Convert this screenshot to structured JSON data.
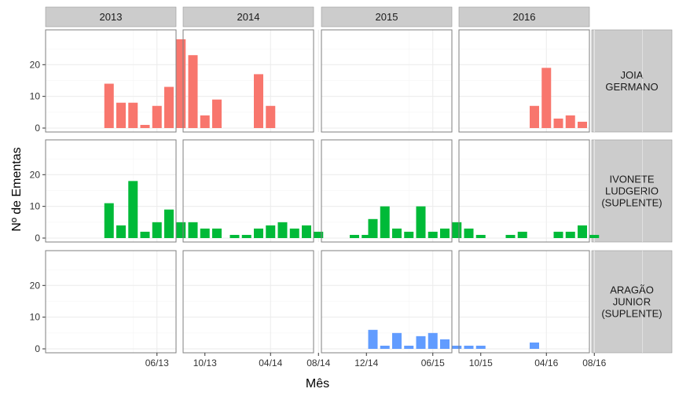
{
  "chart_data": {
    "type": "bar",
    "facet_columns": [
      "2013",
      "2014",
      "2015",
      "2016"
    ],
    "facet_rows": [
      {
        "label_lines": [
          "JOIA",
          "GERMANO"
        ],
        "color": "#F8766D"
      },
      {
        "label_lines": [
          "IVONETE",
          "LUDGERIO",
          "(SUPLENTE)"
        ],
        "color": "#00BA38"
      },
      {
        "label_lines": [
          "ARAGÃO",
          "JUNIOR",
          "(SUPLENTE)"
        ],
        "color": "#619CFF"
      }
    ],
    "x_ticks": [
      {
        "col": 0,
        "label": "06/13",
        "month": 6
      },
      {
        "col": 0,
        "label": "10/13",
        "month": 10
      },
      {
        "col": 1,
        "label": "04/14",
        "month": 4
      },
      {
        "col": 1,
        "label": "08/14",
        "month": 8
      },
      {
        "col": 1,
        "label": "12/14",
        "month": 12
      },
      {
        "col": 2,
        "label": "06/15",
        "month": 6
      },
      {
        "col": 2,
        "label": "10/15",
        "month": 10
      },
      {
        "col": 3,
        "label": "04/16",
        "month": 4
      },
      {
        "col": 3,
        "label": "08/16",
        "month": 8
      }
    ],
    "y_ticks": [
      0,
      10,
      20
    ],
    "ylim": [
      0,
      29
    ],
    "xlabel": "Mês",
    "ylabel": "Nº de Ementas",
    "series": [
      {
        "name": "JOIA GERMANO",
        "row": 0,
        "data": [
          {
            "col": 0,
            "month": 2,
            "value": 14
          },
          {
            "col": 0,
            "month": 3,
            "value": 8
          },
          {
            "col": 0,
            "month": 4,
            "value": 8
          },
          {
            "col": 0,
            "month": 5,
            "value": 1
          },
          {
            "col": 0,
            "month": 6,
            "value": 7
          },
          {
            "col": 0,
            "month": 7,
            "value": 13
          },
          {
            "col": 0,
            "month": 8,
            "value": 28
          },
          {
            "col": 0,
            "month": 9,
            "value": 23
          },
          {
            "col": 0,
            "month": 10,
            "value": 4
          },
          {
            "col": 0,
            "month": 11,
            "value": 9
          },
          {
            "col": 1,
            "month": 3,
            "value": 17
          },
          {
            "col": 1,
            "month": 4,
            "value": 7
          },
          {
            "col": 3,
            "month": 3,
            "value": 7
          },
          {
            "col": 3,
            "month": 4,
            "value": 19
          },
          {
            "col": 3,
            "month": 5,
            "value": 3
          },
          {
            "col": 3,
            "month": 6,
            "value": 4
          },
          {
            "col": 3,
            "month": 7,
            "value": 2
          }
        ]
      },
      {
        "name": "IVONETE LUDGERIO (SUPLENTE)",
        "row": 1,
        "data": [
          {
            "col": 0,
            "month": 2,
            "value": 11
          },
          {
            "col": 0,
            "month": 3,
            "value": 4
          },
          {
            "col": 0,
            "month": 4,
            "value": 18
          },
          {
            "col": 0,
            "month": 5,
            "value": 2
          },
          {
            "col": 0,
            "month": 6,
            "value": 5
          },
          {
            "col": 0,
            "month": 7,
            "value": 9
          },
          {
            "col": 0,
            "month": 8,
            "value": 5
          },
          {
            "col": 0,
            "month": 9,
            "value": 5
          },
          {
            "col": 0,
            "month": 10,
            "value": 3
          },
          {
            "col": 0,
            "month": 11,
            "value": 3
          },
          {
            "col": 1,
            "month": 1,
            "value": 1
          },
          {
            "col": 1,
            "month": 2,
            "value": 1
          },
          {
            "col": 1,
            "month": 3,
            "value": 3
          },
          {
            "col": 1,
            "month": 4,
            "value": 4
          },
          {
            "col": 1,
            "month": 5,
            "value": 5
          },
          {
            "col": 1,
            "month": 6,
            "value": 3
          },
          {
            "col": 1,
            "month": 7,
            "value": 4
          },
          {
            "col": 1,
            "month": 8,
            "value": 2
          },
          {
            "col": 1,
            "month": 11,
            "value": 1
          },
          {
            "col": 1,
            "month": 12,
            "value": 1
          },
          {
            "col": 2,
            "month": 1,
            "value": 6
          },
          {
            "col": 2,
            "month": 2,
            "value": 10
          },
          {
            "col": 2,
            "month": 3,
            "value": 3
          },
          {
            "col": 2,
            "month": 4,
            "value": 2
          },
          {
            "col": 2,
            "month": 5,
            "value": 10
          },
          {
            "col": 2,
            "month": 6,
            "value": 2
          },
          {
            "col": 2,
            "month": 7,
            "value": 3
          },
          {
            "col": 2,
            "month": 8,
            "value": 5
          },
          {
            "col": 2,
            "month": 9,
            "value": 3
          },
          {
            "col": 2,
            "month": 10,
            "value": 1
          },
          {
            "col": 3,
            "month": 1,
            "value": 1
          },
          {
            "col": 3,
            "month": 2,
            "value": 2
          },
          {
            "col": 3,
            "month": 5,
            "value": 2
          },
          {
            "col": 3,
            "month": 6,
            "value": 2
          },
          {
            "col": 3,
            "month": 7,
            "value": 4
          },
          {
            "col": 3,
            "month": 8,
            "value": 1
          }
        ]
      },
      {
        "name": "ARAGÃO JUNIOR (SUPLENTE)",
        "row": 2,
        "data": [
          {
            "col": 2,
            "month": 1,
            "value": 6
          },
          {
            "col": 2,
            "month": 2,
            "value": 1
          },
          {
            "col": 2,
            "month": 3,
            "value": 5
          },
          {
            "col": 2,
            "month": 4,
            "value": 1
          },
          {
            "col": 2,
            "month": 5,
            "value": 4
          },
          {
            "col": 2,
            "month": 6,
            "value": 5
          },
          {
            "col": 2,
            "month": 7,
            "value": 3
          },
          {
            "col": 2,
            "month": 8,
            "value": 1
          },
          {
            "col": 2,
            "month": 9,
            "value": 1
          },
          {
            "col": 2,
            "month": 10,
            "value": 1
          },
          {
            "col": 3,
            "month": 3,
            "value": 2
          }
        ]
      }
    ],
    "grid": true,
    "legend": "none"
  }
}
